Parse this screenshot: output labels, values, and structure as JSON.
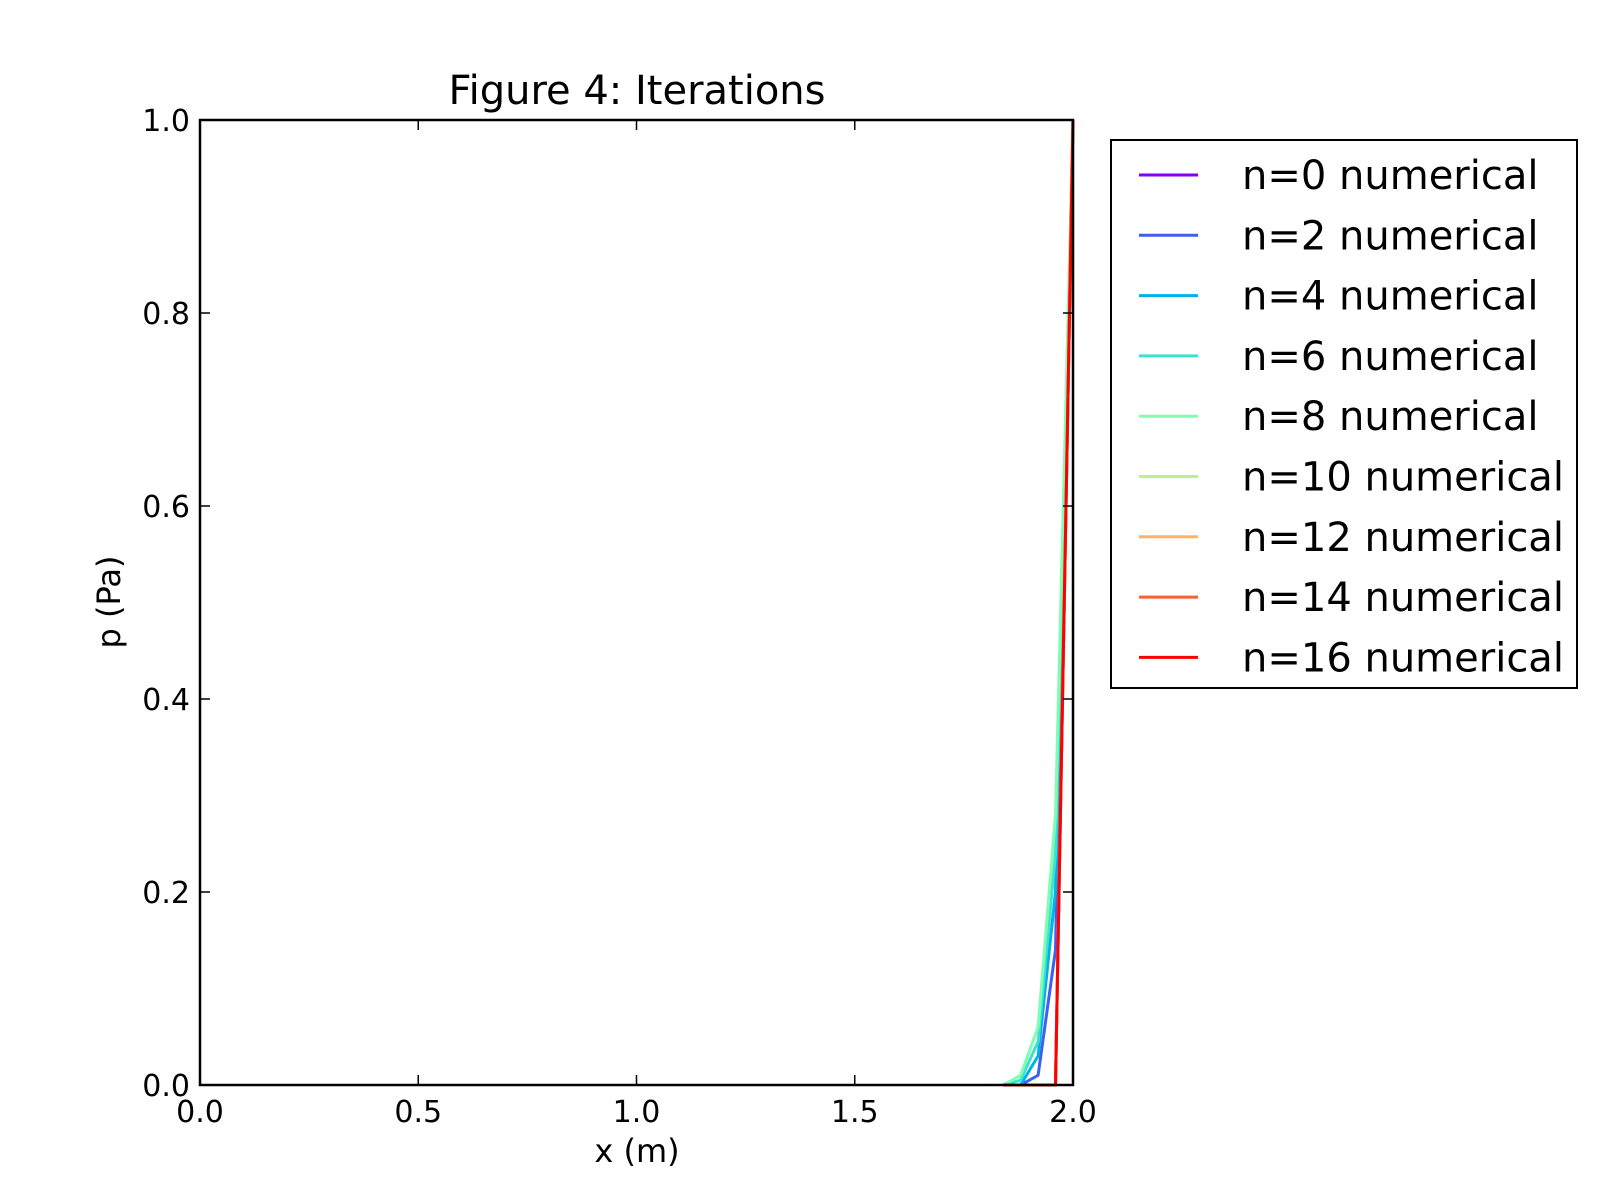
{
  "chart_data": {
    "type": "line",
    "title": "Figure 4: Iterations",
    "xlabel": "x (m)",
    "ylabel": "p (Pa)",
    "xlim": [
      0.0,
      2.0
    ],
    "ylim": [
      0.0,
      1.0
    ],
    "x_ticks": [
      "0.0",
      "0.5",
      "1.0",
      "1.5",
      "2.0"
    ],
    "y_ticks": [
      "0.0",
      "0.2",
      "0.4",
      "0.6",
      "0.8",
      "1.0"
    ],
    "grid": false,
    "legend_position": "outside-top-right",
    "x": [
      1.84,
      1.88,
      1.92,
      1.96,
      2.0
    ],
    "series": [
      {
        "name": "n=0 numerical",
        "color": "#7f00ff",
        "values": [
          0.0,
          0.0,
          0.0,
          0.0,
          1.0
        ]
      },
      {
        "name": "n=2 numerical",
        "color": "#3f5ef4",
        "values": [
          0.0,
          0.0,
          0.01,
          0.14,
          1.0
        ]
      },
      {
        "name": "n=4 numerical",
        "color": "#01b3e4",
        "values": [
          0.0,
          0.0,
          0.03,
          0.2,
          1.0
        ]
      },
      {
        "name": "n=6 numerical",
        "color": "#40e0d0",
        "values": [
          0.0,
          0.005,
          0.045,
          0.24,
          1.0
        ]
      },
      {
        "name": "n=8 numerical",
        "color": "#7ffeb2",
        "values": [
          0.0,
          0.01,
          0.06,
          0.28,
          1.0
        ]
      },
      {
        "name": "n=10 numerical",
        "color": "#bfed90",
        "values": [
          0.0,
          0.0,
          0.0,
          0.0,
          1.0
        ]
      },
      {
        "name": "n=12 numerical",
        "color": "#ffb360",
        "values": [
          0.0,
          0.0,
          0.0,
          0.0,
          1.0
        ]
      },
      {
        "name": "n=14 numerical",
        "color": "#ff5e31",
        "values": [
          0.0,
          0.0,
          0.0,
          0.0,
          1.0
        ]
      },
      {
        "name": "n=16 numerical",
        "color": "#ff0000",
        "values": [
          0.0,
          0.0,
          0.0,
          0.0,
          1.0
        ]
      }
    ]
  }
}
